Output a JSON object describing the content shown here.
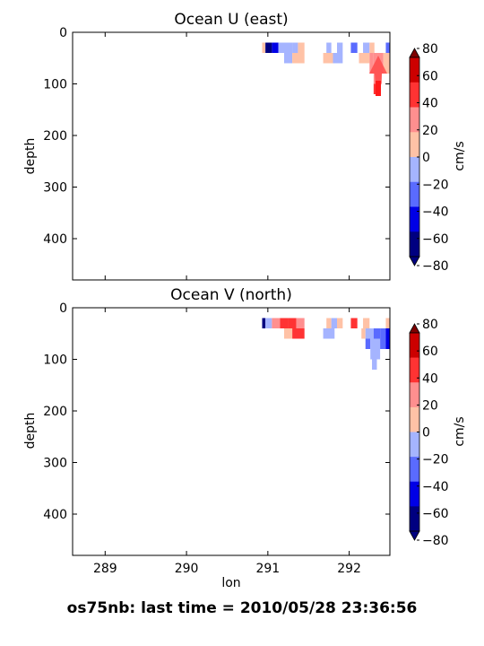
{
  "figure": {
    "footer": "os75nb: last time = 2010/05/28 23:36:56"
  },
  "colorbar": {
    "label": "cm/s",
    "ticks": [
      80,
      60,
      40,
      20,
      0,
      -20,
      -40,
      -60,
      -80
    ],
    "tick_labels": [
      "80",
      "60",
      "40",
      "20",
      "0",
      "−20",
      "−40",
      "−60",
      "−80"
    ],
    "levels_top_to_bottom": [
      "#7f0000",
      "#cc0000",
      "#ff3333",
      "#ff8f8f",
      "#ffc2a6",
      "#a5b4ff",
      "#5a6bff",
      "#0000e6",
      "#000080"
    ]
  },
  "chart_data": [
    {
      "type": "heatmap",
      "title": "Ocean U (east)",
      "ylabel": "depth",
      "xlabel": "",
      "xlim": [
        288.6,
        292.5
      ],
      "ylim": [
        480,
        0
      ],
      "yticks": [
        0,
        100,
        200,
        300,
        400
      ],
      "xticks": [
        289,
        290,
        291,
        292
      ],
      "x_tick_labels_visible": false,
      "cells": [
        {
          "x0": 290.93,
          "x1": 290.97,
          "y0": 20,
          "y1": 40,
          "v": 10
        },
        {
          "x0": 290.97,
          "x1": 291.05,
          "y0": 20,
          "y1": 40,
          "v": -70
        },
        {
          "x0": 291.05,
          "x1": 291.13,
          "y0": 20,
          "y1": 40,
          "v": -50
        },
        {
          "x0": 291.13,
          "x1": 291.2,
          "y0": 20,
          "y1": 40,
          "v": -10
        },
        {
          "x0": 291.2,
          "x1": 291.3,
          "y0": 20,
          "y1": 40,
          "v": -10
        },
        {
          "x0": 291.3,
          "x1": 291.37,
          "y0": 20,
          "y1": 40,
          "v": -10
        },
        {
          "x0": 291.37,
          "x1": 291.45,
          "y0": 20,
          "y1": 40,
          "v": 10
        },
        {
          "x0": 291.2,
          "x1": 291.3,
          "y0": 40,
          "y1": 60,
          "v": -10
        },
        {
          "x0": 291.3,
          "x1": 291.45,
          "y0": 40,
          "y1": 60,
          "v": 10
        },
        {
          "x0": 291.72,
          "x1": 291.78,
          "y0": 20,
          "y1": 40,
          "v": -10
        },
        {
          "x0": 291.85,
          "x1": 291.92,
          "y0": 20,
          "y1": 40,
          "v": -10
        },
        {
          "x0": 291.68,
          "x1": 291.82,
          "y0": 40,
          "y1": 60,
          "v": 10
        },
        {
          "x0": 291.8,
          "x1": 291.92,
          "y0": 40,
          "y1": 60,
          "v": -10
        },
        {
          "x0": 292.02,
          "x1": 292.1,
          "y0": 20,
          "y1": 40,
          "v": -30
        },
        {
          "x0": 292.17,
          "x1": 292.25,
          "y0": 20,
          "y1": 40,
          "v": -10
        },
        {
          "x0": 292.25,
          "x1": 292.31,
          "y0": 20,
          "y1": 40,
          "v": 10
        },
        {
          "x0": 292.45,
          "x1": 292.5,
          "y0": 20,
          "y1": 40,
          "v": -30
        },
        {
          "x0": 292.12,
          "x1": 292.25,
          "y0": 40,
          "y1": 60,
          "v": 10
        },
        {
          "x0": 292.25,
          "x1": 292.3,
          "y0": 40,
          "y1": 60,
          "v": 30
        },
        {
          "x0": 292.3,
          "x1": 292.42,
          "y0": 40,
          "y1": 60,
          "v": 30
        },
        {
          "x0": 292.42,
          "x1": 292.5,
          "y0": 40,
          "y1": 60,
          "v": 10
        },
        {
          "x0": 292.25,
          "x1": 292.3,
          "y0": 60,
          "y1": 80,
          "v": 30
        },
        {
          "x0": 292.3,
          "x1": 292.42,
          "y0": 60,
          "y1": 80,
          "v": 30
        },
        {
          "x0": 292.42,
          "x1": 292.5,
          "y0": 60,
          "y1": 80,
          "v": 10
        },
        {
          "x0": 292.3,
          "x1": 292.4,
          "y0": 80,
          "y1": 100,
          "v": 30
        },
        {
          "x0": 292.3,
          "x1": 292.37,
          "y0": 100,
          "y1": 120,
          "v": 50
        }
      ]
    },
    {
      "type": "heatmap",
      "title": "Ocean V (north)",
      "ylabel": "depth",
      "xlabel": "lon",
      "xlim": [
        288.6,
        292.5
      ],
      "ylim": [
        480,
        0
      ],
      "yticks": [
        0,
        100,
        200,
        300,
        400
      ],
      "xticks": [
        289,
        290,
        291,
        292
      ],
      "x_tick_labels_visible": true,
      "cells": [
        {
          "x0": 290.93,
          "x1": 290.97,
          "y0": 20,
          "y1": 40,
          "v": -70
        },
        {
          "x0": 290.97,
          "x1": 291.05,
          "y0": 20,
          "y1": 40,
          "v": -10
        },
        {
          "x0": 291.05,
          "x1": 291.15,
          "y0": 20,
          "y1": 40,
          "v": 30
        },
        {
          "x0": 291.15,
          "x1": 291.25,
          "y0": 20,
          "y1": 40,
          "v": 50
        },
        {
          "x0": 291.25,
          "x1": 291.35,
          "y0": 20,
          "y1": 40,
          "v": 50
        },
        {
          "x0": 291.35,
          "x1": 291.45,
          "y0": 20,
          "y1": 40,
          "v": 30
        },
        {
          "x0": 291.3,
          "x1": 291.45,
          "y0": 40,
          "y1": 60,
          "v": 50
        },
        {
          "x0": 291.2,
          "x1": 291.3,
          "y0": 40,
          "y1": 60,
          "v": 10
        },
        {
          "x0": 291.72,
          "x1": 291.78,
          "y0": 20,
          "y1": 40,
          "v": 10
        },
        {
          "x0": 291.78,
          "x1": 291.85,
          "y0": 20,
          "y1": 40,
          "v": -10
        },
        {
          "x0": 291.85,
          "x1": 291.92,
          "y0": 20,
          "y1": 40,
          "v": 10
        },
        {
          "x0": 291.68,
          "x1": 291.82,
          "y0": 40,
          "y1": 60,
          "v": -10
        },
        {
          "x0": 292.02,
          "x1": 292.1,
          "y0": 20,
          "y1": 40,
          "v": 50
        },
        {
          "x0": 292.17,
          "x1": 292.25,
          "y0": 20,
          "y1": 40,
          "v": 10
        },
        {
          "x0": 292.45,
          "x1": 292.5,
          "y0": 20,
          "y1": 40,
          "v": 10
        },
        {
          "x0": 292.15,
          "x1": 292.2,
          "y0": 40,
          "y1": 60,
          "v": 10
        },
        {
          "x0": 292.2,
          "x1": 292.3,
          "y0": 40,
          "y1": 60,
          "v": -10
        },
        {
          "x0": 292.3,
          "x1": 292.38,
          "y0": 40,
          "y1": 60,
          "v": -30
        },
        {
          "x0": 292.38,
          "x1": 292.45,
          "y0": 40,
          "y1": 60,
          "v": -30
        },
        {
          "x0": 292.45,
          "x1": 292.5,
          "y0": 40,
          "y1": 60,
          "v": -50
        },
        {
          "x0": 292.2,
          "x1": 292.26,
          "y0": 60,
          "y1": 80,
          "v": -30
        },
        {
          "x0": 292.26,
          "x1": 292.38,
          "y0": 60,
          "y1": 80,
          "v": -10
        },
        {
          "x0": 292.38,
          "x1": 292.45,
          "y0": 60,
          "y1": 80,
          "v": -30
        },
        {
          "x0": 292.45,
          "x1": 292.5,
          "y0": 60,
          "y1": 80,
          "v": -50
        },
        {
          "x0": 292.26,
          "x1": 292.38,
          "y0": 80,
          "y1": 100,
          "v": -10
        },
        {
          "x0": 292.28,
          "x1": 292.34,
          "y0": 100,
          "y1": 120,
          "v": -10
        }
      ]
    }
  ]
}
